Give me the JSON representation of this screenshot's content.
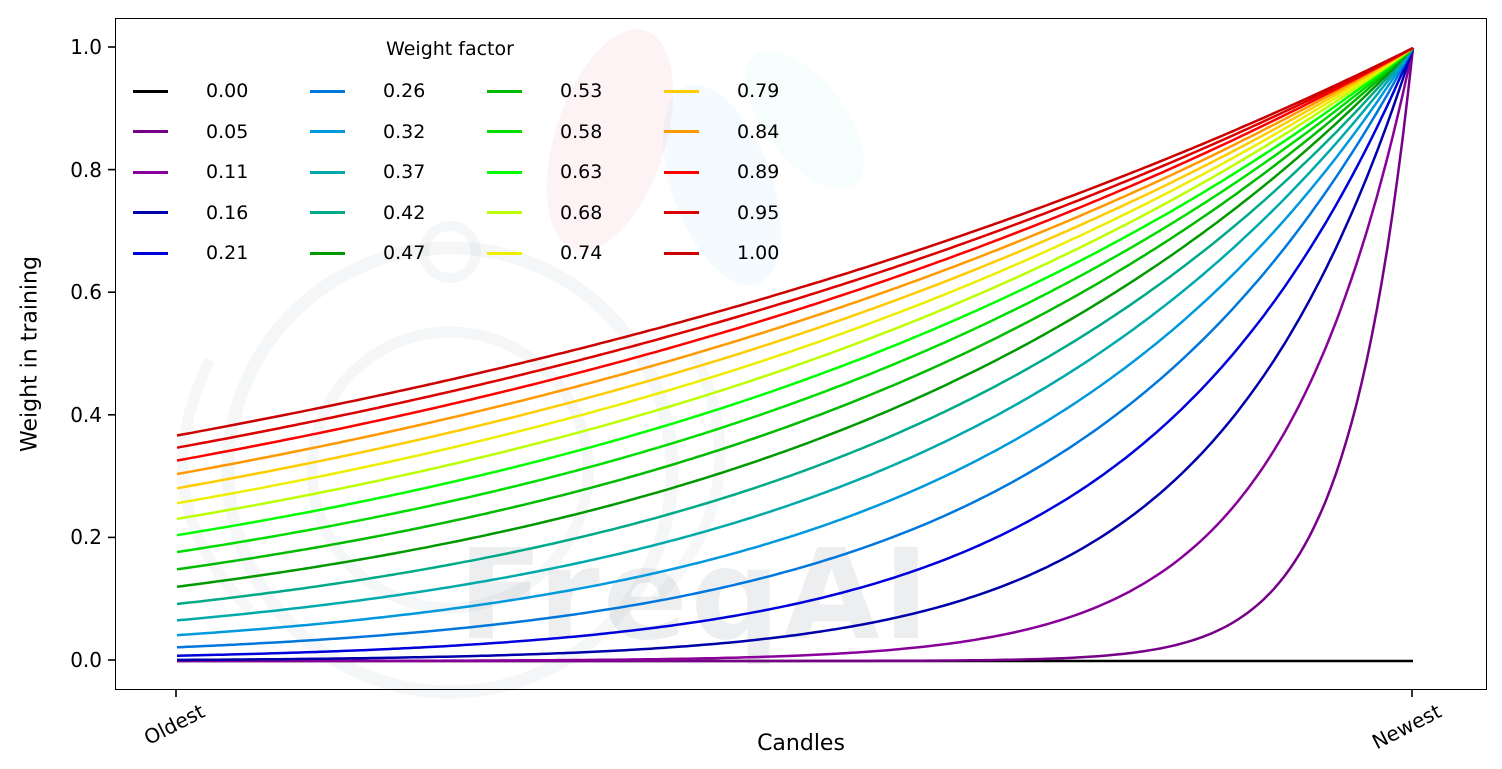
{
  "figure": {
    "background": "#ffffff",
    "watermark_text": "FreqAI"
  },
  "chart_data": {
    "type": "line",
    "title": "",
    "xlabel": "Candles",
    "ylabel": "Weight in training",
    "x_tick_labels": [
      "Oldest",
      "Newest"
    ],
    "y_ticks": [
      0.0,
      0.2,
      0.4,
      0.6,
      0.8,
      1.0
    ],
    "y_tick_labels": [
      "0.0",
      "0.2",
      "0.4",
      "0.6",
      "0.8",
      "1.0"
    ],
    "xlim_normalized": [
      0,
      1
    ],
    "ylim": [
      0,
      1
    ],
    "grid": false,
    "legend_title": "Weight factor",
    "legend_location": "upper left",
    "legend_ncol": 4,
    "legend_fill_order": "column-major",
    "curve_formula": "weight(t) = exp(-(1 - t) / factor) with t normalized 0=Oldest, 1=Newest; factor 0 gives all-zero weights",
    "series": [
      {
        "label": "0.00",
        "factor": 0.0,
        "color": "#000000",
        "y_oldest": 0.0,
        "y_newest": 0.0
      },
      {
        "label": "0.05",
        "factor": 0.0526,
        "color": "#770088",
        "y_oldest": 0.0,
        "y_newest": 1.0
      },
      {
        "label": "0.11",
        "factor": 0.1053,
        "color": "#880099",
        "y_oldest": 0.0001,
        "y_newest": 1.0
      },
      {
        "label": "0.16",
        "factor": 0.1579,
        "color": "#0000aa",
        "y_oldest": 0.0018,
        "y_newest": 1.0
      },
      {
        "label": "0.21",
        "factor": 0.2105,
        "color": "#0000dd",
        "y_oldest": 0.0087,
        "y_newest": 1.0
      },
      {
        "label": "0.26",
        "factor": 0.2632,
        "color": "#0077dd",
        "y_oldest": 0.0224,
        "y_newest": 1.0
      },
      {
        "label": "0.32",
        "factor": 0.3158,
        "color": "#0099dd",
        "y_oldest": 0.0422,
        "y_newest": 1.0
      },
      {
        "label": "0.37",
        "factor": 0.3684,
        "color": "#00aaaa",
        "y_oldest": 0.0662,
        "y_newest": 1.0
      },
      {
        "label": "0.42",
        "factor": 0.4211,
        "color": "#00aa88",
        "y_oldest": 0.0932,
        "y_newest": 1.0
      },
      {
        "label": "0.47",
        "factor": 0.4737,
        "color": "#009900",
        "y_oldest": 0.1213,
        "y_newest": 1.0
      },
      {
        "label": "0.53",
        "factor": 0.5263,
        "color": "#00bb00",
        "y_oldest": 0.1496,
        "y_newest": 1.0
      },
      {
        "label": "0.58",
        "factor": 0.5789,
        "color": "#00dd00",
        "y_oldest": 0.1778,
        "y_newest": 1.0
      },
      {
        "label": "0.63",
        "factor": 0.6316,
        "color": "#00ff00",
        "y_oldest": 0.2053,
        "y_newest": 1.0
      },
      {
        "label": "0.68",
        "factor": 0.6842,
        "color": "#bbff00",
        "y_oldest": 0.2318,
        "y_newest": 1.0
      },
      {
        "label": "0.74",
        "factor": 0.7368,
        "color": "#eeee00",
        "y_oldest": 0.2573,
        "y_newest": 1.0
      },
      {
        "label": "0.79",
        "factor": 0.7895,
        "color": "#ffcc00",
        "y_oldest": 0.2818,
        "y_newest": 1.0
      },
      {
        "label": "0.84",
        "factor": 0.8421,
        "color": "#ff9900",
        "y_oldest": 0.305,
        "y_newest": 1.0
      },
      {
        "label": "0.89",
        "factor": 0.8947,
        "color": "#ff0000",
        "y_oldest": 0.327,
        "y_newest": 1.0
      },
      {
        "label": "0.95",
        "factor": 0.9474,
        "color": "#dd0000",
        "y_oldest": 0.348,
        "y_newest": 1.0
      },
      {
        "label": "1.00",
        "factor": 1.0,
        "color": "#cc0000",
        "y_oldest": 0.3679,
        "y_newest": 1.0
      }
    ]
  }
}
